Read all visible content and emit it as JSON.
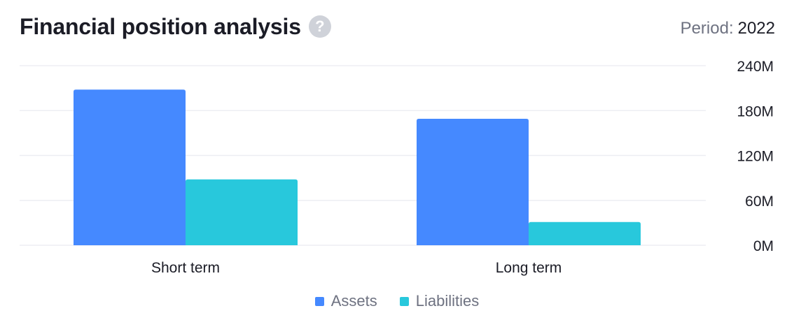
{
  "header": {
    "title": "Financial position analysis",
    "help_icon": "question-mark-icon",
    "period_label": "Period:",
    "period_value": "2022"
  },
  "colors": {
    "assets": "#4589ff",
    "liabilities": "#28c8dc",
    "grid": "#edeef3"
  },
  "chart_data": {
    "type": "bar",
    "categories": [
      "Short term",
      "Long term"
    ],
    "series": [
      {
        "name": "Assets",
        "values": [
          208000000,
          169000000
        ]
      },
      {
        "name": "Liabilities",
        "values": [
          88000000,
          31000000
        ]
      }
    ],
    "y_ticks": [
      "0M",
      "60M",
      "120M",
      "180M",
      "240M"
    ],
    "y_tick_values": [
      0,
      60000000,
      120000000,
      180000000,
      240000000
    ],
    "ylim": [
      0,
      240000000
    ],
    "y_axis_position": "right",
    "grid": true,
    "legend_position": "bottom"
  }
}
